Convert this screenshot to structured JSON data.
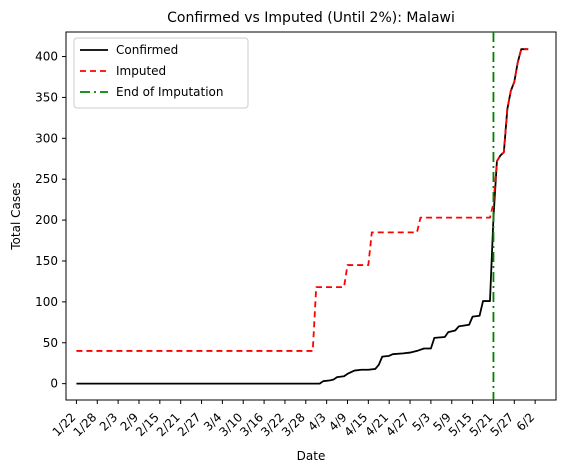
{
  "chart_data": {
    "type": "line",
    "title": "Confirmed vs Imputed (Until 2%): Malawi",
    "xlabel": "Date",
    "ylabel": "Total Cases",
    "x_start": "1/22",
    "x_end": "6/5",
    "xlim": [
      "1/19",
      "6/8"
    ],
    "ylim": [
      -20,
      430
    ],
    "y_ticks": [
      0,
      50,
      100,
      150,
      200,
      250,
      300,
      350,
      400
    ],
    "x_ticks": [
      "1/22",
      "1/28",
      "2/3",
      "2/9",
      "2/15",
      "2/21",
      "2/27",
      "3/4",
      "3/10",
      "3/16",
      "3/22",
      "3/28",
      "4/3",
      "4/9",
      "4/15",
      "4/21",
      "4/27",
      "5/3",
      "5/9",
      "5/15",
      "5/21",
      "5/27",
      "6/2"
    ],
    "grid": false,
    "legend_position": "top-left",
    "series": [
      {
        "name": "Confirmed",
        "color": "#000000",
        "style": "solid",
        "points": [
          [
            "1/22",
            0
          ],
          [
            "4/1",
            0
          ],
          [
            "4/2",
            3
          ],
          [
            "4/4",
            4
          ],
          [
            "4/5",
            5
          ],
          [
            "4/6",
            8
          ],
          [
            "4/8",
            9
          ],
          [
            "4/9",
            12
          ],
          [
            "4/11",
            16
          ],
          [
            "4/13",
            17
          ],
          [
            "4/15",
            17
          ],
          [
            "4/17",
            18
          ],
          [
            "4/18",
            23
          ],
          [
            "4/19",
            33
          ],
          [
            "4/21",
            34
          ],
          [
            "4/22",
            36
          ],
          [
            "4/25",
            37
          ],
          [
            "4/27",
            38
          ],
          [
            "4/29",
            40
          ],
          [
            "5/1",
            43
          ],
          [
            "5/3",
            43
          ],
          [
            "5/4",
            56
          ],
          [
            "5/7",
            57
          ],
          [
            "5/8",
            63
          ],
          [
            "5/10",
            65
          ],
          [
            "5/11",
            70
          ],
          [
            "5/14",
            72
          ],
          [
            "5/15",
            82
          ],
          [
            "5/17",
            83
          ],
          [
            "5/18",
            101
          ],
          [
            "5/20",
            101
          ],
          [
            "5/21",
            203
          ],
          [
            "5/22",
            272
          ],
          [
            "5/23",
            279
          ],
          [
            "5/24",
            283
          ],
          [
            "5/25",
            336
          ],
          [
            "5/26",
            358
          ],
          [
            "5/27",
            369
          ],
          [
            "5/28",
            393
          ],
          [
            "5/29",
            409
          ],
          [
            "5/31",
            409
          ]
        ]
      },
      {
        "name": "Imputed",
        "color": "#ff0000",
        "style": "dashed",
        "points": [
          [
            "1/22",
            40
          ],
          [
            "3/30",
            40
          ],
          [
            "3/31",
            118
          ],
          [
            "4/8",
            118
          ],
          [
            "4/9",
            145
          ],
          [
            "4/15",
            145
          ],
          [
            "4/16",
            185
          ],
          [
            "4/29",
            185
          ],
          [
            "4/30",
            203
          ],
          [
            "5/20",
            203
          ],
          [
            "5/21",
            220
          ],
          [
            "5/22",
            272
          ],
          [
            "5/23",
            279
          ],
          [
            "5/24",
            283
          ],
          [
            "5/25",
            336
          ],
          [
            "5/26",
            358
          ],
          [
            "5/27",
            369
          ],
          [
            "5/28",
            393
          ],
          [
            "5/29",
            409
          ],
          [
            "5/31",
            409
          ]
        ]
      },
      {
        "name": "End of Imputation",
        "color": "#008000",
        "style": "dashdot",
        "x": "5/21"
      }
    ]
  }
}
